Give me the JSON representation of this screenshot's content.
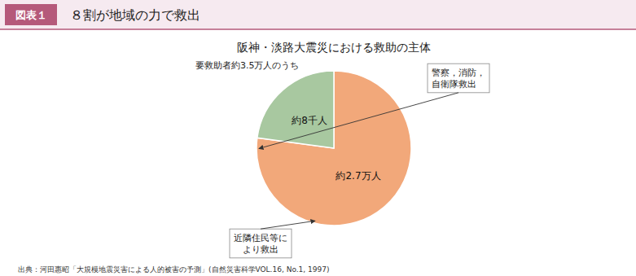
{
  "chart_data": {
    "type": "pie",
    "title": "阪神・淡路大震災における救助の主体",
    "values": [
      2.7,
      0.8
    ],
    "value_labels": [
      "約2.7万人",
      "約8千人"
    ],
    "colors": [
      "#F2A87A",
      "#A8C8A0"
    ],
    "data_labels": true,
    "annotations": [
      "図表１",
      "８割が地域の力で救出",
      "要救助者約3.5万人のうち",
      "警察，消防，\n自衛隊救出",
      "近隣住民等に\nより救出",
      "出典：河田惠昭「大規模地震災害による人的被害の予測」(自然災害科学VOL.16, No.1, 1997)"
    ]
  }
}
